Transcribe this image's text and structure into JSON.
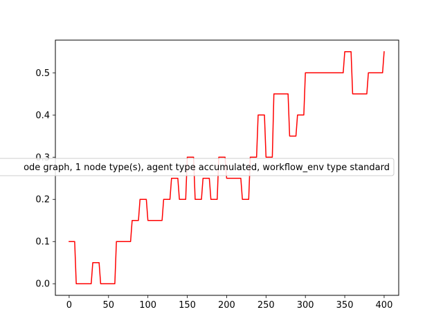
{
  "chart_data": {
    "type": "line",
    "title": "",
    "xlabel": "",
    "ylabel": "",
    "xlim": [
      -17.5,
      418.5
    ],
    "ylim": [
      -0.0275,
      0.5775
    ],
    "xticks": [
      0,
      50,
      100,
      150,
      200,
      250,
      300,
      350,
      400
    ],
    "yticks": [
      0.0,
      0.1,
      0.2,
      0.3,
      0.4,
      0.5
    ],
    "ytick_labels": [
      "0.0",
      "0.1",
      "0.2",
      "0.3",
      "0.4",
      "0.5"
    ],
    "grid": false,
    "legend_placement": "center-left",
    "series": [
      {
        "name": "ode graph, 1 node type(s), agent type accumulated, workflow_env type standard",
        "color": "#ff0000",
        "x": [
          0,
          7,
          9,
          28,
          30,
          38,
          40,
          58,
          60,
          78,
          80,
          88,
          90,
          98,
          100,
          118,
          120,
          128,
          130,
          138,
          140,
          148,
          150,
          158,
          160,
          168,
          170,
          178,
          180,
          188,
          190,
          198,
          200,
          218,
          220,
          228,
          230,
          238,
          240,
          248,
          250,
          258,
          260,
          278,
          280,
          288,
          290,
          298,
          300,
          348,
          350,
          358,
          360,
          378,
          380,
          398,
          400
        ],
        "y": [
          0.1,
          0.1,
          0.0,
          0.0,
          0.05,
          0.05,
          0.0,
          0.0,
          0.1,
          0.1,
          0.15,
          0.15,
          0.2,
          0.2,
          0.15,
          0.15,
          0.2,
          0.2,
          0.25,
          0.25,
          0.2,
          0.2,
          0.3,
          0.3,
          0.2,
          0.2,
          0.25,
          0.25,
          0.2,
          0.2,
          0.3,
          0.3,
          0.25,
          0.25,
          0.2,
          0.2,
          0.3,
          0.3,
          0.4,
          0.4,
          0.3,
          0.3,
          0.45,
          0.45,
          0.35,
          0.35,
          0.4,
          0.4,
          0.5,
          0.5,
          0.55,
          0.55,
          0.45,
          0.45,
          0.5,
          0.5,
          0.55
        ]
      }
    ]
  }
}
